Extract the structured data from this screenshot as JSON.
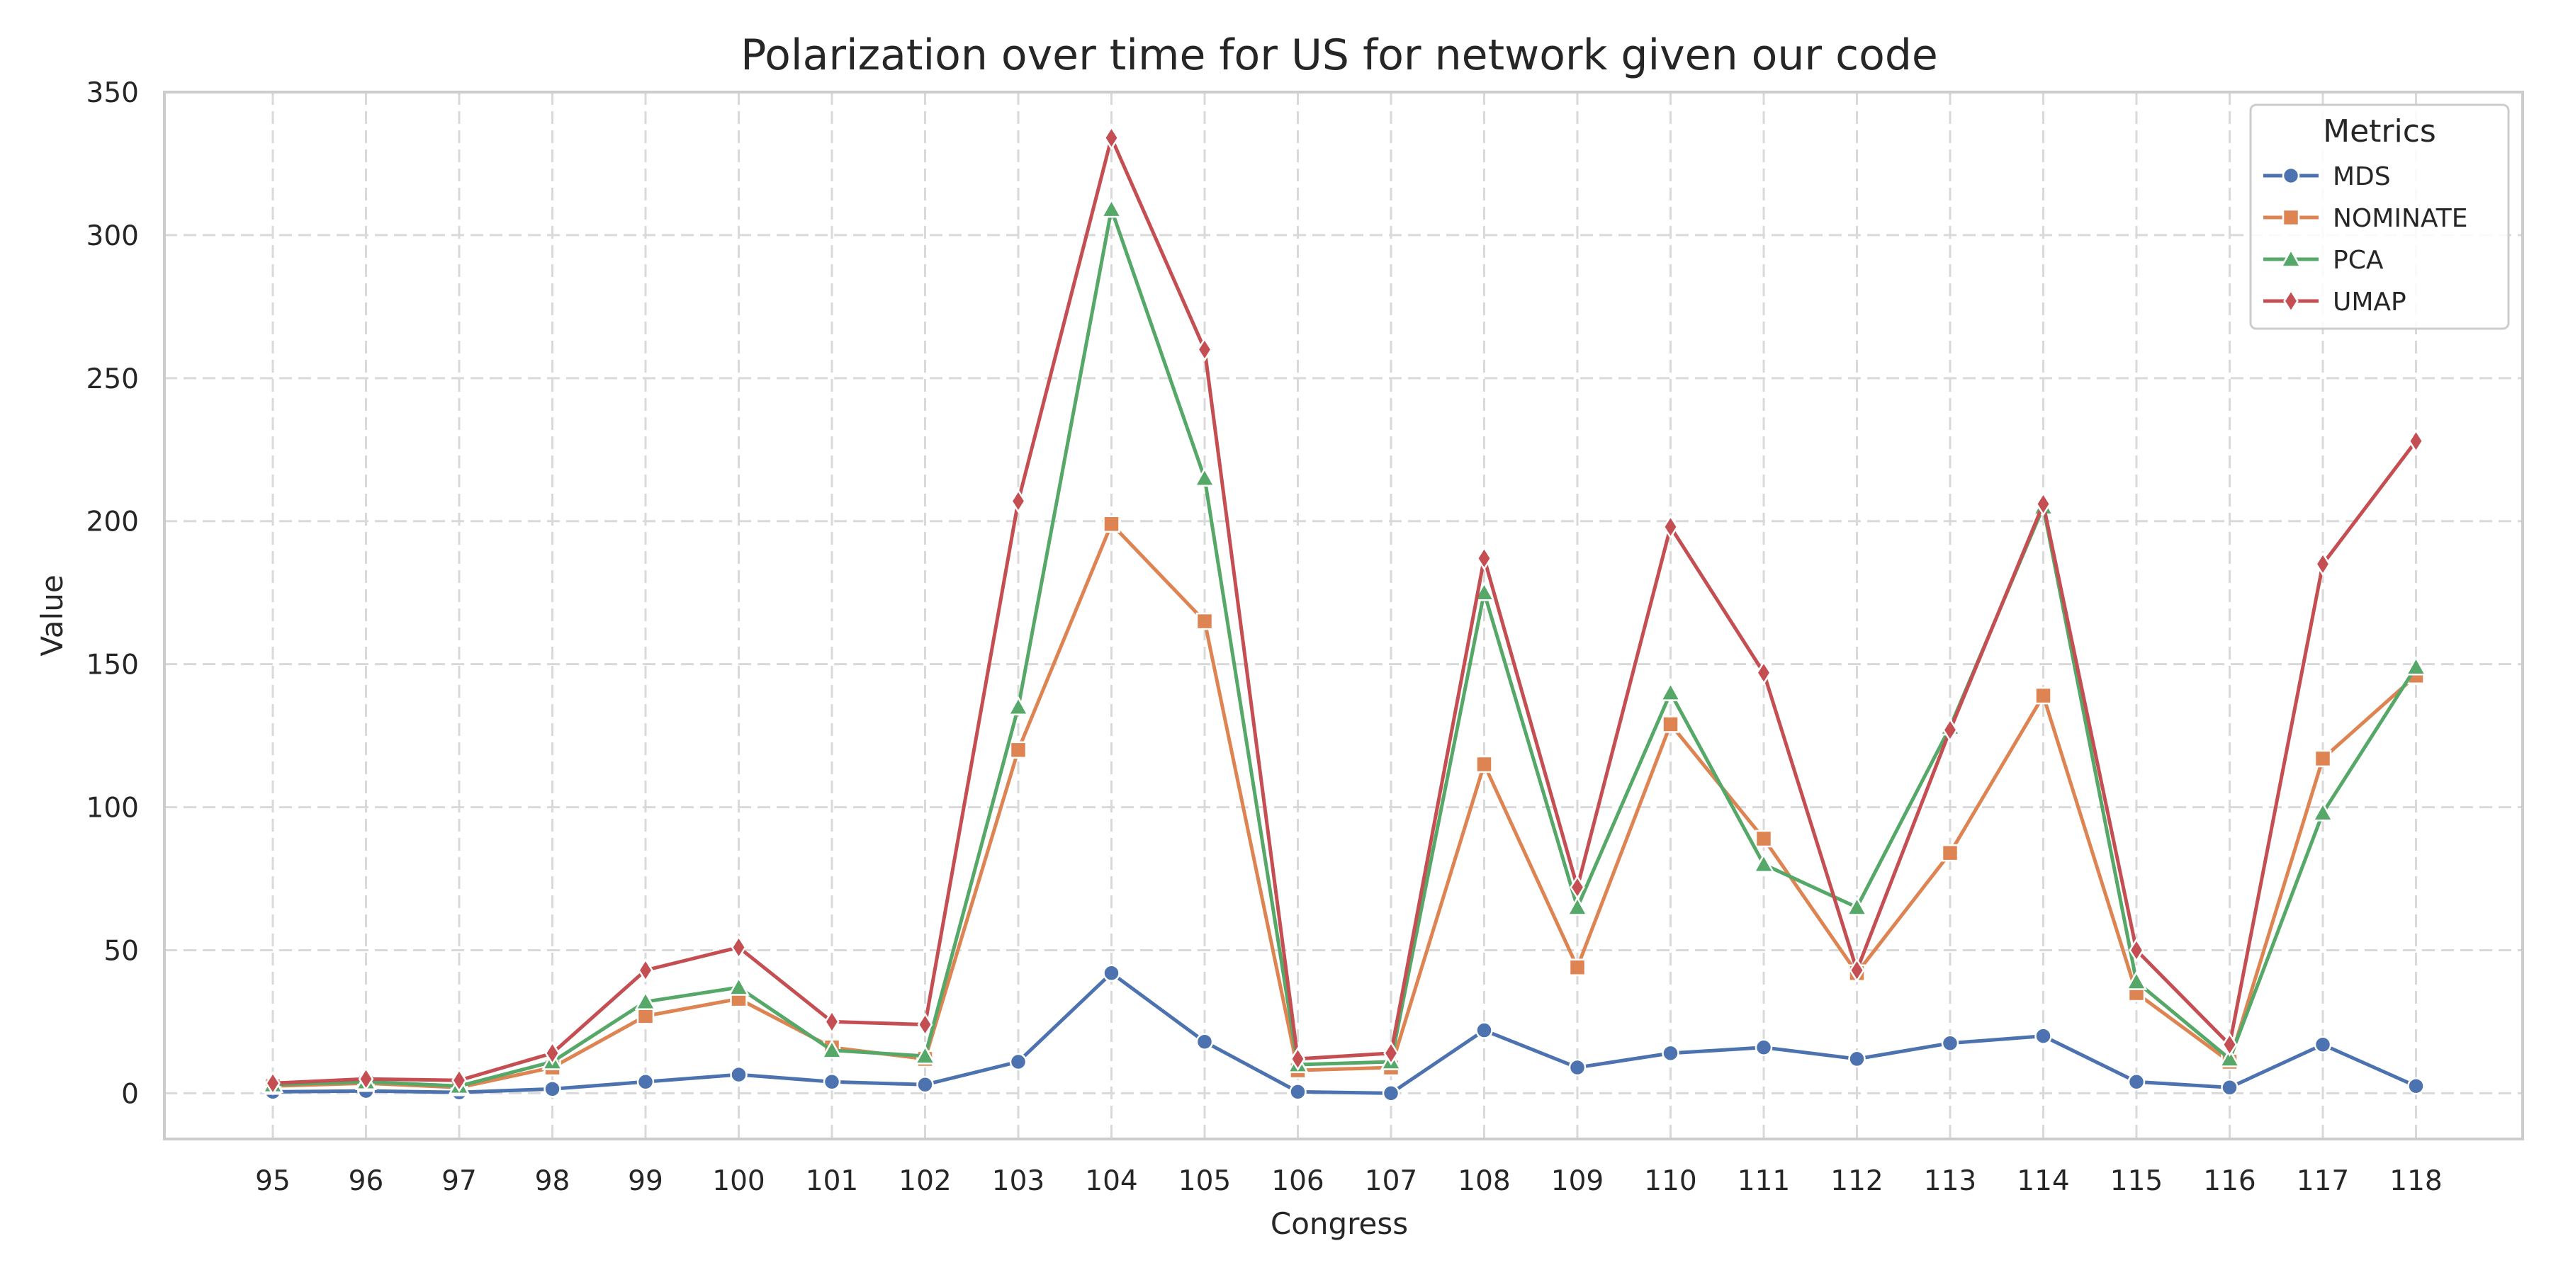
{
  "chart_data": {
    "type": "line",
    "title": "Polarization over time for US for network given our code",
    "xlabel": "Congress",
    "ylabel": "Value",
    "categories": [
      "95",
      "96",
      "97",
      "98",
      "99",
      "100",
      "101",
      "102",
      "103",
      "104",
      "105",
      "106",
      "107",
      "108",
      "109",
      "110",
      "111",
      "112",
      "113",
      "114",
      "115",
      "116",
      "117",
      "118"
    ],
    "ylim": [
      -16,
      350
    ],
    "yticks": [
      0,
      50,
      100,
      150,
      200,
      250,
      300,
      350
    ],
    "grid": true,
    "legend": {
      "title": "Metrics",
      "placement": "top-right"
    },
    "series": [
      {
        "name": "MDS",
        "color": "#4c72b0",
        "marker": "circle",
        "values": [
          0.5,
          0.8,
          0.3,
          1.5,
          4,
          6.5,
          4,
          3,
          11,
          42,
          18,
          0.5,
          0,
          22,
          9,
          14,
          16,
          12,
          17.5,
          20,
          4,
          2,
          17,
          2.5
        ]
      },
      {
        "name": "NOMINATE",
        "color": "#dd8452",
        "marker": "square",
        "values": [
          2.5,
          3.5,
          2,
          9,
          27,
          33,
          16,
          12,
          120,
          199,
          165,
          8,
          9,
          115,
          44,
          129,
          89,
          42,
          84,
          139,
          35,
          11,
          117,
          146
        ]
      },
      {
        "name": "PCA",
        "color": "#55a868",
        "marker": "triangle",
        "values": [
          3,
          4,
          2.5,
          11,
          32,
          37,
          15,
          13,
          135,
          309,
          215,
          10,
          11,
          175,
          65,
          140,
          80,
          65,
          128,
          205,
          39,
          12,
          98,
          149
        ]
      },
      {
        "name": "UMAP",
        "color": "#c44e52",
        "marker": "diamond",
        "values": [
          3.5,
          5,
          4.5,
          14,
          43,
          51,
          25,
          24,
          207,
          334,
          260,
          12,
          14,
          187,
          72,
          198,
          147,
          43,
          127,
          206,
          50,
          17,
          185,
          228
        ]
      }
    ]
  }
}
